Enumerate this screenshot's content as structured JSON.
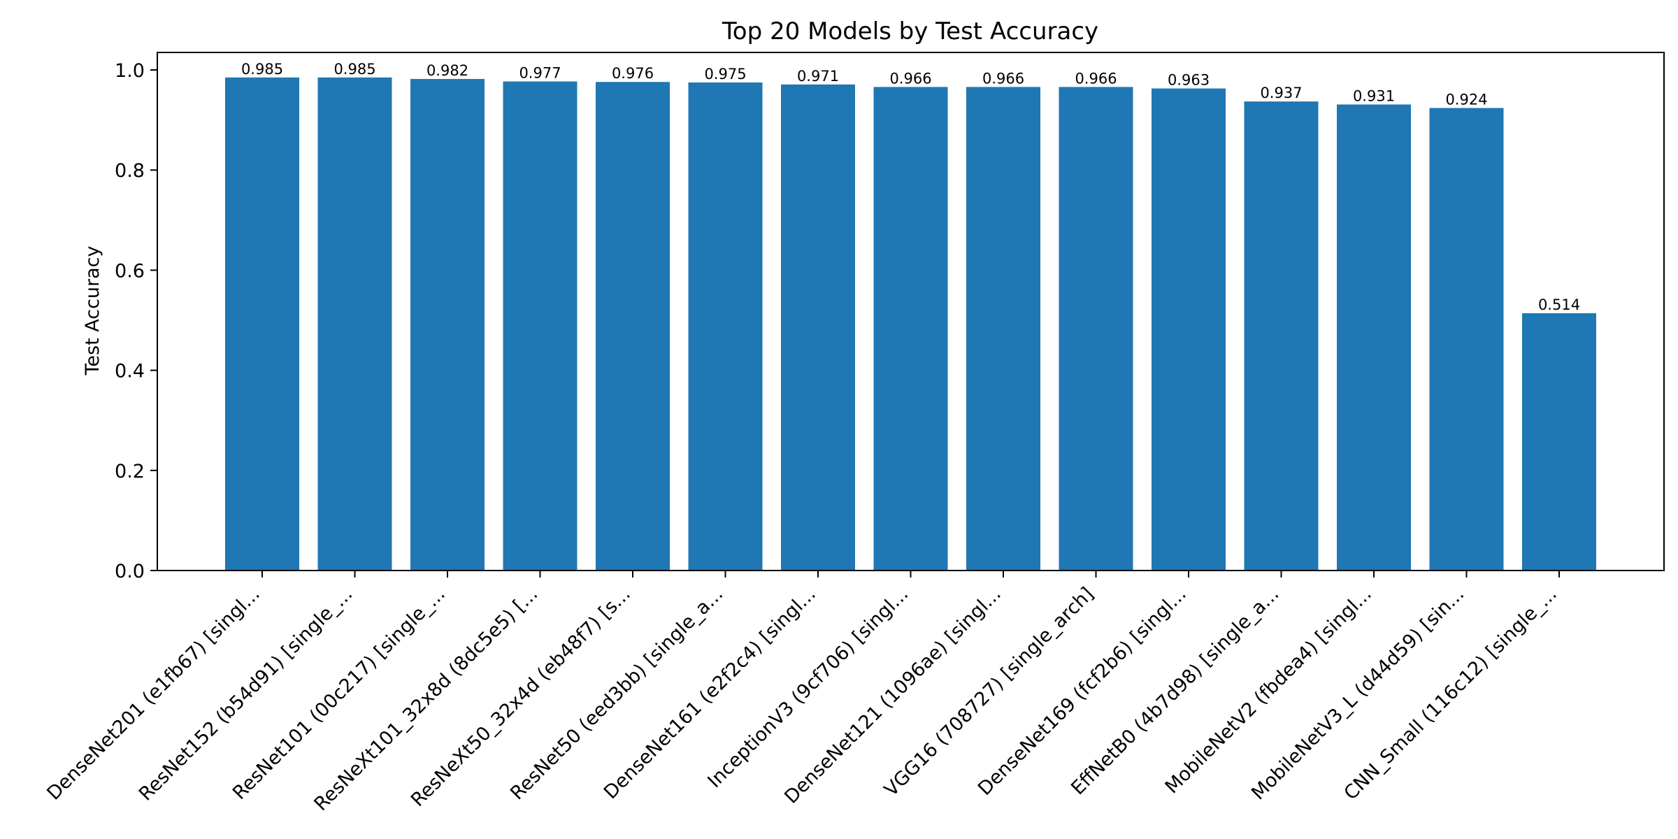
{
  "chart_data": {
    "type": "bar",
    "title": "Top 20 Models by Test Accuracy",
    "xlabel": "",
    "ylabel": "Test Accuracy",
    "ylim": [
      0,
      1.035
    ],
    "yticks": [
      "0.0",
      "0.2",
      "0.4",
      "0.6",
      "0.8",
      "1.0"
    ],
    "grid": false,
    "categories": [
      "DenseNet201 (e1fb67) [singl...",
      "ResNet152 (b54d91) [single_...",
      "ResNet101 (00c217) [single_...",
      "ResNeXt101_32x8d (8dc5e5) [...",
      "ResNeXt50_32x4d (eb48f7) [s...",
      "ResNet50 (eed3bb) [single_a...",
      "DenseNet161 (e2f2c4) [singl...",
      "InceptionV3 (9cf706) [singl...",
      "DenseNet121 (1096ae) [singl...",
      "VGG16 (708727) [single_arch]",
      "DenseNet169 (fcf2b6) [singl...",
      "EffNetB0 (4b7d98) [single_a...",
      "MobileNetV2 (fbdea4) [singl...",
      "MobileNetV3_L (d44d59) [sin...",
      "CNN_Small (116c12) [single_..."
    ],
    "values": [
      0.985,
      0.985,
      0.982,
      0.977,
      0.976,
      0.975,
      0.971,
      0.966,
      0.966,
      0.966,
      0.963,
      0.937,
      0.931,
      0.924,
      0.514
    ],
    "data_labels": [
      "0.985",
      "0.985",
      "0.982",
      "0.977",
      "0.976",
      "0.975",
      "0.971",
      "0.966",
      "0.966",
      "0.966",
      "0.963",
      "0.937",
      "0.931",
      "0.924",
      "0.514"
    ],
    "bar_color": "#1f77b4"
  }
}
